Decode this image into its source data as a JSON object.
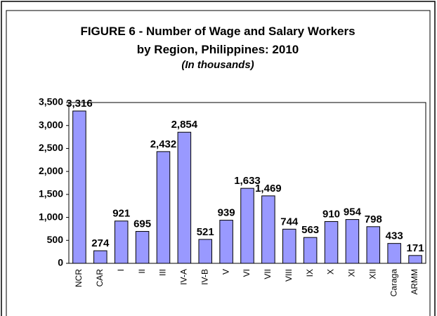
{
  "chart_data": {
    "type": "bar",
    "title": "FIGURE 6 - Number of Wage and Salary Workers by Region, Philippines: 2010",
    "subtitle": "(In thousands)",
    "categories": [
      "NCR",
      "CAR",
      "I",
      "II",
      "III",
      "IV-A",
      "IV-B",
      "V",
      "VI",
      "VII",
      "VIII",
      "IX",
      "X",
      "XI",
      "XII",
      "Caraga",
      "ARMM"
    ],
    "values": [
      3316,
      274,
      921,
      695,
      2432,
      2854,
      521,
      939,
      1633,
      1469,
      744,
      563,
      910,
      954,
      798,
      433,
      171
    ],
    "value_labels": [
      "3,316",
      "274",
      "921",
      "695",
      "2,432",
      "2,854",
      "521",
      "939",
      "1,633",
      "1,469",
      "744",
      "563",
      "910",
      "954",
      "798",
      "433",
      "171"
    ],
    "color": "#9999ff",
    "ylim": [
      0,
      3500
    ],
    "yticks": [
      0,
      500,
      {
        "value": 1000,
        "label": "1,000"
      },
      {
        "value": 1500,
        "label": "1,500"
      },
      {
        "value": 2000,
        "label": "2,000"
      },
      {
        "value": 2500,
        "label": "2,500"
      },
      {
        "value": 3000,
        "label": "3,000"
      },
      {
        "value": 3500,
        "label": "3,500"
      }
    ],
    "grid": false
  }
}
